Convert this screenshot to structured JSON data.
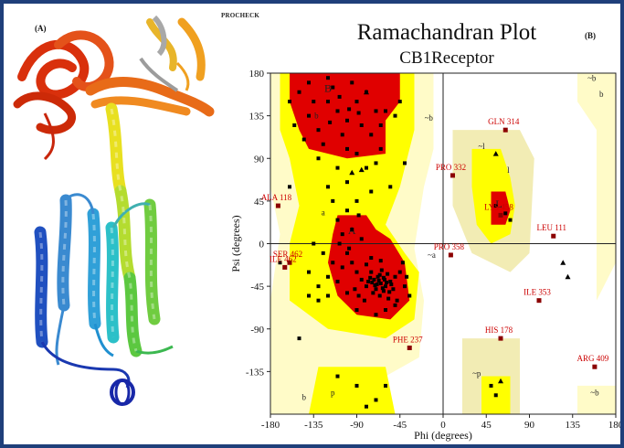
{
  "panels": {
    "a_label": "(A)",
    "b_label": "(B)"
  },
  "procheck_label": "PROCHECK",
  "chart_data": {
    "type": "scatter",
    "title": "Ramachandran Plot",
    "subtitle": "CB1Receptor",
    "xlabel": "Phi (degrees)",
    "ylabel": "Psi (degrees)",
    "xlim": [
      -180,
      180
    ],
    "ylim": [
      -180,
      180
    ],
    "xticks": [
      -180,
      -135,
      -90,
      -45,
      0,
      45,
      90,
      135,
      180
    ],
    "yticks": [
      -135,
      -90,
      -45,
      0,
      45,
      90,
      135,
      180
    ],
    "grid": false,
    "region_labels": [
      {
        "text": "B",
        "phi": -120,
        "psi": 160
      },
      {
        "text": "b",
        "phi": -132,
        "psi": 132
      },
      {
        "text": "a",
        "phi": -125,
        "psi": 30
      },
      {
        "text": "A",
        "phi": -95,
        "psi": 10
      },
      {
        "text": "~b",
        "phi": -15,
        "psi": 130
      },
      {
        "text": "~b",
        "phi": 155,
        "psi": 172
      },
      {
        "text": "~a",
        "phi": -12,
        "psi": -15
      },
      {
        "text": "l",
        "phi": 68,
        "psi": 75
      },
      {
        "text": "L",
        "phi": 58,
        "psi": 38
      },
      {
        "text": "~l",
        "phi": 40,
        "psi": 100
      },
      {
        "text": "b",
        "phi": -145,
        "psi": -165
      },
      {
        "text": "~p",
        "phi": 35,
        "psi": -140
      },
      {
        "text": "p",
        "phi": -115,
        "psi": -160
      },
      {
        "text": "~b",
        "phi": 158,
        "psi": -160
      },
      {
        "text": "b",
        "phi": 165,
        "psi": 155
      }
    ],
    "labeled_residues": [
      {
        "name": "GLN 314",
        "phi": 65,
        "psi": 120
      },
      {
        "name": "PRO 332",
        "phi": 10,
        "psi": 72
      },
      {
        "name": "ALA 118",
        "phi": -172,
        "psi": 40
      },
      {
        "name": "LYS 458",
        "phi": 60,
        "psi": 30
      },
      {
        "name": "LEU 111",
        "phi": 115,
        "psi": 8
      },
      {
        "name": "PRO 358",
        "phi": 8,
        "psi": -12
      },
      {
        "name": "ILE 462",
        "phi": -165,
        "psi": -25
      },
      {
        "name": "SER 462",
        "phi": -160,
        "psi": -20
      },
      {
        "name": "ILE 353",
        "phi": 100,
        "psi": -60
      },
      {
        "name": "HIS 178",
        "phi": 60,
        "psi": -100
      },
      {
        "name": "PHE 237",
        "phi": -35,
        "psi": -110
      },
      {
        "name": "ARG 409",
        "phi": 158,
        "psi": -130
      }
    ],
    "non_gly_points": [
      [
        -78,
        -40
      ],
      [
        -72,
        -38
      ],
      [
        -65,
        -42
      ],
      [
        -60,
        -45
      ],
      [
        -68,
        -35
      ],
      [
        -55,
        -40
      ],
      [
        -62,
        -50
      ],
      [
        -70,
        -48
      ],
      [
        -58,
        -32
      ],
      [
        -75,
        -30
      ],
      [
        -66,
        -55
      ],
      [
        -52,
        -48
      ],
      [
        -80,
        -45
      ],
      [
        -64,
        -28
      ],
      [
        -57,
        -58
      ],
      [
        -85,
        -38
      ],
      [
        -50,
        -35
      ],
      [
        -73,
        -52
      ],
      [
        -61,
        -38
      ],
      [
        -69,
        -43
      ],
      [
        -63,
        -47
      ],
      [
        -59,
        -41
      ],
      [
        -67,
        -39
      ],
      [
        -71,
        -44
      ],
      [
        -54,
        -43
      ],
      [
        -76,
        -36
      ],
      [
        -66,
        -33
      ],
      [
        -62,
        -36
      ],
      [
        -56,
        -51
      ],
      [
        -74,
        -41
      ],
      [
        -90,
        -30
      ],
      [
        -95,
        -20
      ],
      [
        -100,
        -10
      ],
      [
        -105,
        -25
      ],
      [
        -110,
        -40
      ],
      [
        -88,
        -55
      ],
      [
        -82,
        -60
      ],
      [
        -92,
        -48
      ],
      [
        -100,
        -52
      ],
      [
        -115,
        -20
      ],
      [
        -120,
        -35
      ],
      [
        -98,
        -5
      ],
      [
        -108,
        0
      ],
      [
        -85,
        5
      ],
      [
        -95,
        15
      ],
      [
        -75,
        -15
      ],
      [
        -65,
        -18
      ],
      [
        -80,
        -22
      ],
      [
        -45,
        -30
      ],
      [
        -40,
        -45
      ],
      [
        -48,
        -60
      ],
      [
        -42,
        -20
      ],
      [
        -38,
        -35
      ],
      [
        -35,
        -55
      ],
      [
        -50,
        -65
      ],
      [
        -120,
        -55
      ],
      [
        -130,
        -45
      ],
      [
        -140,
        -30
      ],
      [
        -125,
        -10
      ],
      [
        -135,
        0
      ],
      [
        -110,
        25
      ],
      [
        -100,
        35
      ],
      [
        -88,
        30
      ],
      [
        -115,
        45
      ],
      [
        -105,
        10
      ],
      [
        -90,
        -70
      ],
      [
        -70,
        -75
      ],
      [
        -60,
        -70
      ],
      [
        -130,
        -60
      ],
      [
        -140,
        -55
      ],
      [
        -120,
        150
      ],
      [
        -110,
        140
      ],
      [
        -100,
        130
      ],
      [
        -90,
        150
      ],
      [
        -80,
        160
      ],
      [
        -70,
        140
      ],
      [
        -130,
        120
      ],
      [
        -140,
        135
      ],
      [
        -115,
        165
      ],
      [
        -95,
        170
      ],
      [
        -85,
        125
      ],
      [
        -75,
        115
      ],
      [
        -125,
        105
      ],
      [
        -135,
        150
      ],
      [
        -150,
        160
      ],
      [
        -105,
        115
      ],
      [
        -60,
        140
      ],
      [
        -65,
        125
      ],
      [
        -145,
        110
      ],
      [
        -100,
        100
      ],
      [
        -90,
        95
      ],
      [
        -80,
        80
      ],
      [
        -70,
        85
      ],
      [
        -110,
        80
      ],
      [
        -130,
        90
      ],
      [
        -160,
        150
      ],
      [
        -120,
        60
      ],
      [
        -100,
        65
      ],
      [
        -90,
        45
      ],
      [
        -75,
        55
      ],
      [
        -65,
        100
      ],
      [
        -155,
        125
      ],
      [
        -50,
        135
      ],
      [
        -45,
        150
      ],
      [
        -140,
        170
      ],
      [
        -120,
        175
      ],
      [
        -98,
        142
      ],
      [
        -108,
        155
      ],
      [
        -118,
        128
      ],
      [
        -88,
        138
      ],
      [
        65,
        32
      ],
      [
        55,
        40
      ],
      [
        70,
        25
      ],
      [
        -70,
        -165
      ],
      [
        -90,
        -150
      ],
      [
        -110,
        -140
      ],
      [
        -60,
        -150
      ],
      [
        -80,
        -172
      ],
      [
        50,
        -150
      ],
      [
        55,
        -160
      ],
      [
        -150,
        -100
      ],
      [
        -160,
        60
      ],
      [
        -170,
        -20
      ],
      [
        -40,
        85
      ],
      [
        -55,
        60
      ]
    ],
    "gly_points": [
      [
        55,
        95
      ],
      [
        -95,
        75
      ],
      [
        -85,
        78
      ],
      [
        125,
        -20
      ],
      [
        130,
        -35
      ],
      [
        60,
        -145
      ],
      [
        -80,
        160
      ]
    ]
  }
}
